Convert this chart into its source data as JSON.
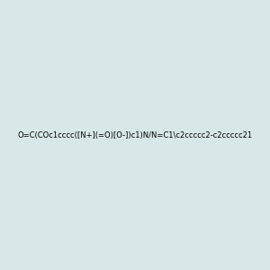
{
  "smiles": "O=C(COc1cccc([N+](=O)[O-])c1)N/N=C1\\c2ccccc2-c2ccccc21",
  "image_size": 300,
  "background_color": "#d8e8e8",
  "bond_color": "#2d7d7d",
  "atom_colors": {
    "N": "#0000ff",
    "O": "#ff0000",
    "default": "#2d7d7d"
  }
}
